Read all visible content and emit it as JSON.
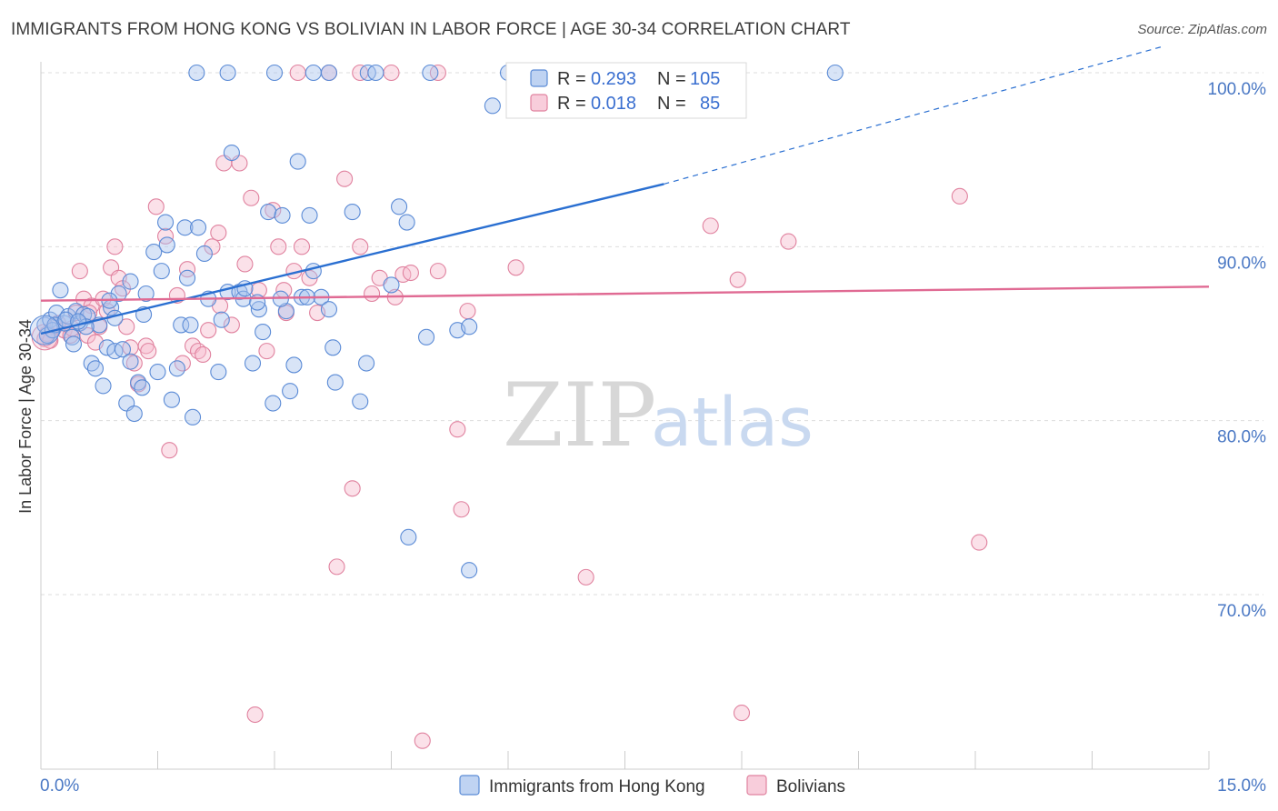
{
  "title": "IMMIGRANTS FROM HONG KONG VS BOLIVIAN IN LABOR FORCE | AGE 30-34 CORRELATION CHART",
  "source": "Source: ZipAtlas.com",
  "watermark": {
    "zip": "ZIP",
    "atlas": "atlas"
  },
  "colors": {
    "blue_fill": "#a9c4ee",
    "blue_stroke": "#5b8bd6",
    "blue_line": "#2a6fd1",
    "pink_fill": "#f6bccf",
    "pink_stroke": "#e0829f",
    "pink_line": "#e06a93",
    "axis_label": "#4a78c4",
    "grid": "#dddddd"
  },
  "legend": {
    "rows": [
      {
        "r_label": "R = ",
        "r_value": "0.293",
        "n_label": "N = ",
        "n_value": "105"
      },
      {
        "r_label": "R = ",
        "r_value": "0.018",
        "n_label": "N = ",
        "n_value": "85"
      }
    ]
  },
  "chart_data": {
    "type": "scatter",
    "title": "IMMIGRANTS FROM HONG KONG VS BOLIVIAN IN LABOR FORCE | AGE 30-34 CORRELATION CHART",
    "xlabel": "",
    "ylabel": "In Labor Force | Age 30-34",
    "xlim": [
      0,
      15
    ],
    "ylim": [
      60,
      101.5
    ],
    "x_tick_labels": [
      "0.0%",
      "15.0%"
    ],
    "y_ticks": [
      70,
      80,
      90,
      100
    ],
    "y_tick_labels": [
      "70.0%",
      "80.0%",
      "90.0%",
      "100.0%"
    ],
    "grid": true,
    "legend_position": "top-center",
    "series": [
      {
        "name": "Immigrants from Hong Kong",
        "r": 0.293,
        "n": 105,
        "trend": {
          "x0": 0,
          "y0": 85.0,
          "x1": 8.0,
          "y1": 93.6,
          "dashed_to_x": 14.4,
          "dashed_to_y": 101.5
        },
        "points": [
          [
            0.05,
            85.5
          ],
          [
            0.08,
            84.9
          ],
          [
            0.12,
            85.8
          ],
          [
            0.15,
            85.2
          ],
          [
            0.2,
            86.2
          ],
          [
            0.25,
            87.5
          ],
          [
            0.3,
            85.6
          ],
          [
            0.35,
            86.0
          ],
          [
            0.4,
            84.8
          ],
          [
            0.45,
            86.3
          ],
          [
            0.5,
            85.6
          ],
          [
            0.55,
            86.1
          ],
          [
            0.6,
            86.0
          ],
          [
            0.65,
            83.3
          ],
          [
            0.7,
            83.0
          ],
          [
            0.75,
            85.5
          ],
          [
            0.8,
            82.0
          ],
          [
            0.85,
            84.2
          ],
          [
            0.9,
            86.5
          ],
          [
            0.95,
            84.0
          ],
          [
            1.0,
            87.3
          ],
          [
            1.05,
            84.1
          ],
          [
            1.1,
            81.0
          ],
          [
            1.15,
            83.4
          ],
          [
            1.2,
            80.4
          ],
          [
            1.25,
            82.2
          ],
          [
            1.3,
            81.9
          ],
          [
            1.35,
            87.3
          ],
          [
            1.45,
            89.7
          ],
          [
            1.5,
            82.8
          ],
          [
            1.55,
            88.6
          ],
          [
            1.6,
            91.4
          ],
          [
            1.62,
            90.1
          ],
          [
            1.68,
            81.2
          ],
          [
            1.75,
            83.0
          ],
          [
            1.8,
            85.5
          ],
          [
            1.85,
            91.1
          ],
          [
            1.92,
            85.5
          ],
          [
            1.95,
            80.2
          ],
          [
            2.02,
            91.1
          ],
          [
            2.1,
            89.6
          ],
          [
            2.15,
            87.0
          ],
          [
            2.28,
            82.8
          ],
          [
            2.4,
            87.4
          ],
          [
            2.45,
            95.4
          ],
          [
            2.55,
            87.4
          ],
          [
            2.6,
            87.0
          ],
          [
            2.72,
            83.3
          ],
          [
            2.8,
            86.4
          ],
          [
            2.85,
            85.1
          ],
          [
            2.92,
            92.0
          ],
          [
            2.98,
            81.0
          ],
          [
            3.1,
            91.8
          ],
          [
            3.15,
            86.3
          ],
          [
            3.2,
            81.7
          ],
          [
            3.25,
            83.2
          ],
          [
            3.3,
            94.9
          ],
          [
            3.35,
            87.1
          ],
          [
            3.45,
            91.8
          ],
          [
            3.5,
            88.6
          ],
          [
            3.6,
            87.1
          ],
          [
            3.7,
            86.4
          ],
          [
            3.75,
            84.2
          ],
          [
            3.78,
            82.2
          ],
          [
            4.0,
            92.0
          ],
          [
            4.1,
            81.1
          ],
          [
            4.18,
            83.3
          ],
          [
            4.5,
            87.8
          ],
          [
            4.6,
            92.3
          ],
          [
            4.7,
            91.4
          ],
          [
            4.72,
            73.3
          ],
          [
            4.95,
            84.8
          ],
          [
            5.35,
            85.2
          ],
          [
            5.5,
            71.4
          ],
          [
            5.5,
            85.4
          ],
          [
            2.0,
            100
          ],
          [
            2.4,
            100
          ],
          [
            3.0,
            100
          ],
          [
            3.5,
            100
          ],
          [
            3.7,
            100
          ],
          [
            4.2,
            100
          ],
          [
            4.3,
            100
          ],
          [
            5.0,
            100
          ],
          [
            6.0,
            100
          ],
          [
            6.5,
            100
          ],
          [
            6.9,
            100
          ],
          [
            8.0,
            100
          ],
          [
            8.6,
            100
          ],
          [
            10.2,
            100
          ],
          [
            5.8,
            98.1
          ],
          [
            0.18,
            85.5
          ],
          [
            0.32,
            85.8
          ],
          [
            0.58,
            85.4
          ],
          [
            0.95,
            85.9
          ],
          [
            1.15,
            88.0
          ],
          [
            1.32,
            86.1
          ],
          [
            1.88,
            88.2
          ],
          [
            2.32,
            85.8
          ],
          [
            2.62,
            87.6
          ],
          [
            2.78,
            86.8
          ],
          [
            3.08,
            87.0
          ],
          [
            3.42,
            87.1
          ],
          [
            0.42,
            84.4
          ],
          [
            0.48,
            85.7
          ],
          [
            0.88,
            86.9
          ]
        ]
      },
      {
        "name": "Bolivians",
        "r": 0.018,
        "n": 85,
        "trend": {
          "x0": 0,
          "y0": 86.9,
          "x1": 15,
          "y1": 87.7
        },
        "points": [
          [
            0.05,
            84.7
          ],
          [
            0.08,
            85.0
          ],
          [
            0.12,
            84.6
          ],
          [
            0.18,
            85.4
          ],
          [
            0.22,
            85.6
          ],
          [
            0.3,
            85.2
          ],
          [
            0.38,
            84.9
          ],
          [
            0.45,
            86.2
          ],
          [
            0.5,
            88.6
          ],
          [
            0.55,
            87.0
          ],
          [
            0.6,
            84.9
          ],
          [
            0.65,
            86.6
          ],
          [
            0.7,
            84.5
          ],
          [
            0.75,
            85.4
          ],
          [
            0.8,
            87.0
          ],
          [
            0.85,
            86.3
          ],
          [
            0.9,
            88.8
          ],
          [
            0.95,
            90.0
          ],
          [
            1.0,
            88.2
          ],
          [
            1.05,
            87.6
          ],
          [
            1.1,
            85.4
          ],
          [
            1.15,
            84.2
          ],
          [
            1.2,
            83.3
          ],
          [
            1.25,
            82.1
          ],
          [
            1.35,
            84.3
          ],
          [
            1.48,
            92.3
          ],
          [
            1.6,
            90.6
          ],
          [
            1.65,
            78.3
          ],
          [
            1.75,
            87.2
          ],
          [
            1.82,
            83.3
          ],
          [
            1.88,
            88.7
          ],
          [
            1.95,
            84.3
          ],
          [
            2.02,
            84.0
          ],
          [
            2.08,
            83.8
          ],
          [
            2.15,
            85.2
          ],
          [
            2.2,
            90.0
          ],
          [
            2.28,
            90.8
          ],
          [
            2.35,
            94.8
          ],
          [
            2.45,
            85.5
          ],
          [
            2.55,
            94.8
          ],
          [
            2.62,
            89.0
          ],
          [
            2.7,
            92.8
          ],
          [
            2.8,
            87.5
          ],
          [
            2.9,
            84.0
          ],
          [
            2.98,
            92.1
          ],
          [
            3.05,
            90.0
          ],
          [
            3.15,
            86.2
          ],
          [
            3.25,
            88.6
          ],
          [
            3.35,
            90.0
          ],
          [
            3.45,
            88.2
          ],
          [
            3.55,
            86.2
          ],
          [
            3.8,
            71.6
          ],
          [
            3.9,
            93.9
          ],
          [
            4.0,
            76.1
          ],
          [
            4.1,
            90.0
          ],
          [
            4.25,
            87.3
          ],
          [
            4.35,
            88.2
          ],
          [
            4.55,
            87.1
          ],
          [
            4.65,
            88.4
          ],
          [
            4.75,
            88.5
          ],
          [
            5.1,
            88.6
          ],
          [
            5.35,
            79.5
          ],
          [
            5.4,
            74.9
          ],
          [
            5.48,
            86.3
          ],
          [
            6.1,
            88.8
          ],
          [
            7.0,
            71.0
          ],
          [
            8.6,
            91.2
          ],
          [
            8.95,
            88.1
          ],
          [
            9.6,
            90.3
          ],
          [
            11.8,
            92.9
          ],
          [
            12.05,
            73.0
          ],
          [
            2.75,
            63.1
          ],
          [
            4.9,
            61.6
          ],
          [
            9.0,
            63.2
          ],
          [
            3.3,
            100
          ],
          [
            3.7,
            100
          ],
          [
            4.1,
            100
          ],
          [
            4.5,
            100
          ],
          [
            5.1,
            100
          ],
          [
            6.5,
            100
          ],
          [
            0.4,
            85.3
          ],
          [
            0.62,
            86.2
          ],
          [
            1.38,
            84.0
          ],
          [
            2.3,
            86.6
          ],
          [
            3.12,
            87.5
          ]
        ]
      }
    ]
  },
  "bottom_legend": {
    "items": [
      {
        "label": "Immigrants from Hong Kong"
      },
      {
        "label": "Bolivians"
      }
    ]
  }
}
